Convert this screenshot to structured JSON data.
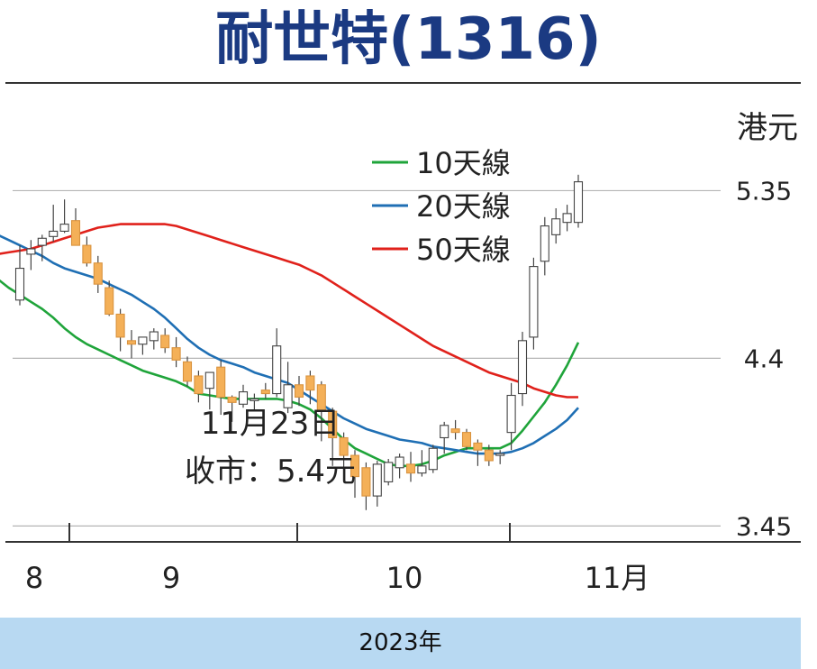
{
  "title": "耐世特(1316)",
  "footer": "2023年",
  "chart_data": {
    "type": "candlestick-line",
    "unit": "港元",
    "y_ticks": [
      "5.35",
      "4.4",
      "3.45"
    ],
    "y_tick_values": [
      5.35,
      4.4,
      3.45
    ],
    "ylim": [
      3.36,
      5.96
    ],
    "x_month_labels": [
      "8",
      "9",
      "10",
      "11月"
    ],
    "grid": "horizontal",
    "legend_position": "top-center",
    "annotation": {
      "date": "11月23日",
      "close": "收市：5.4元"
    },
    "colors": {
      "up": "#ffffff",
      "down": "#f4b058",
      "ma10": "#1fa43a",
      "ma20": "#1f6fb4",
      "ma50": "#e0211b"
    },
    "series": [
      {
        "name": "10天線",
        "color": "#1fa43a",
        "values": [
          4.95,
          4.92,
          4.9,
          4.91,
          4.92,
          4.93,
          4.96,
          4.97,
          4.97,
          4.98,
          4.98,
          4.98,
          4.98,
          4.93,
          4.85,
          4.8,
          4.76,
          4.72,
          4.68,
          4.63,
          4.57,
          4.52,
          4.48,
          4.45,
          4.42,
          4.39,
          4.36,
          4.33,
          4.31,
          4.29,
          4.27,
          4.24,
          4.2,
          4.19,
          4.18,
          4.17,
          4.17,
          4.17,
          4.17,
          4.17,
          4.16,
          4.14,
          4.11,
          4.06,
          4.0,
          3.94,
          3.89,
          3.86,
          3.83,
          3.8,
          3.79,
          3.79,
          3.8,
          3.82,
          3.85,
          3.87,
          3.89,
          3.89,
          3.89,
          3.89,
          3.92,
          3.99,
          4.07,
          4.15,
          4.25,
          4.36,
          4.49
        ]
      },
      {
        "name": "20天線",
        "color": "#1f6fb4",
        "values": [
          5.34,
          5.3,
          5.27,
          5.25,
          5.24,
          5.23,
          5.21,
          5.19,
          5.16,
          5.13,
          5.1,
          5.07,
          5.04,
          5.01,
          4.98,
          4.94,
          4.91,
          4.89,
          4.87,
          4.85,
          4.82,
          4.79,
          4.76,
          4.72,
          4.68,
          4.63,
          4.57,
          4.51,
          4.46,
          4.42,
          4.39,
          4.37,
          4.35,
          4.32,
          4.3,
          4.28,
          4.26,
          4.22,
          4.18,
          4.14,
          4.1,
          4.06,
          4.03,
          4.0,
          3.98,
          3.96,
          3.94,
          3.93,
          3.92,
          3.9,
          3.89,
          3.88,
          3.87,
          3.86,
          3.86,
          3.86,
          3.87,
          3.89,
          3.92,
          3.96,
          4.0,
          4.05,
          4.12
        ]
      },
      {
        "name": "50天線",
        "color": "#e0211b",
        "values": [
          4.98,
          4.99,
          5.0,
          5.01,
          5.02,
          5.04,
          5.06,
          5.08,
          5.1,
          5.12,
          5.14,
          5.15,
          5.16,
          5.16,
          5.16,
          5.16,
          5.16,
          5.15,
          5.13,
          5.11,
          5.09,
          5.07,
          5.05,
          5.03,
          5.01,
          4.99,
          4.97,
          4.95,
          4.93,
          4.9,
          4.87,
          4.83,
          4.79,
          4.75,
          4.71,
          4.67,
          4.63,
          4.59,
          4.55,
          4.51,
          4.47,
          4.44,
          4.41,
          4.38,
          4.35,
          4.32,
          4.3,
          4.28,
          4.26,
          4.23,
          4.21,
          4.19,
          4.18,
          4.18
        ]
      }
    ],
    "candles": {
      "open": [
        4.73,
        4.99,
        5.04,
        5.09,
        5.12,
        5.18,
        5.04,
        4.94,
        4.8,
        4.65,
        4.5,
        4.48,
        4.5,
        4.53,
        4.46,
        4.38,
        4.3,
        4.23,
        4.35,
        4.18,
        4.14,
        4.16,
        4.22,
        4.2,
        4.12,
        4.25,
        4.3,
        4.25,
        4.1,
        3.95,
        3.85,
        3.78,
        3.62,
        3.7,
        3.78,
        3.8,
        3.75,
        3.77,
        3.95,
        4.0,
        3.98,
        3.92,
        3.88,
        3.85,
        3.98,
        4.2,
        4.52,
        4.95,
        5.1,
        5.17,
        5.17
      ],
      "high": [
        5.04,
        5.07,
        5.1,
        5.27,
        5.3,
        5.25,
        5.09,
        4.98,
        4.84,
        4.68,
        4.56,
        4.52,
        4.57,
        4.57,
        4.52,
        4.41,
        4.33,
        4.25,
        4.39,
        4.19,
        4.25,
        4.2,
        4.26,
        4.57,
        4.38,
        4.3,
        4.33,
        4.27,
        4.12,
        3.98,
        3.88,
        3.81,
        3.82,
        3.83,
        3.86,
        3.87,
        3.88,
        3.91,
        4.04,
        4.05,
        4.0,
        3.94,
        3.91,
        3.88,
        4.26,
        4.55,
        4.97,
        5.2,
        5.25,
        5.27,
        5.44
      ],
      "low": [
        4.7,
        4.9,
        4.95,
        5.06,
        5.11,
        5.04,
        4.92,
        4.77,
        4.64,
        4.44,
        4.4,
        4.42,
        4.45,
        4.43,
        4.35,
        4.24,
        4.15,
        4.11,
        4.08,
        4.04,
        4.12,
        4.11,
        4.17,
        4.18,
        4.09,
        4.13,
        4.14,
        3.93,
        3.79,
        3.7,
        3.61,
        3.54,
        3.56,
        3.68,
        3.72,
        3.7,
        3.73,
        3.75,
        3.86,
        3.94,
        3.88,
        3.79,
        3.79,
        3.8,
        3.88,
        4.13,
        4.45,
        4.87,
        5.05,
        5.12,
        5.14
      ],
      "close": [
        4.91,
        5.02,
        5.08,
        5.12,
        5.16,
        5.04,
        4.94,
        4.82,
        4.65,
        4.52,
        4.48,
        4.52,
        4.55,
        4.46,
        4.39,
        4.27,
        4.2,
        4.32,
        4.18,
        4.15,
        4.21,
        4.17,
        4.2,
        4.47,
        4.25,
        4.18,
        4.22,
        4.1,
        3.95,
        3.85,
        3.73,
        3.62,
        3.8,
        3.81,
        3.84,
        3.75,
        3.79,
        3.89,
        4.02,
        3.98,
        3.9,
        3.88,
        3.82,
        3.86,
        4.19,
        4.5,
        4.92,
        5.15,
        5.19,
        5.22,
        5.4
      ]
    }
  }
}
